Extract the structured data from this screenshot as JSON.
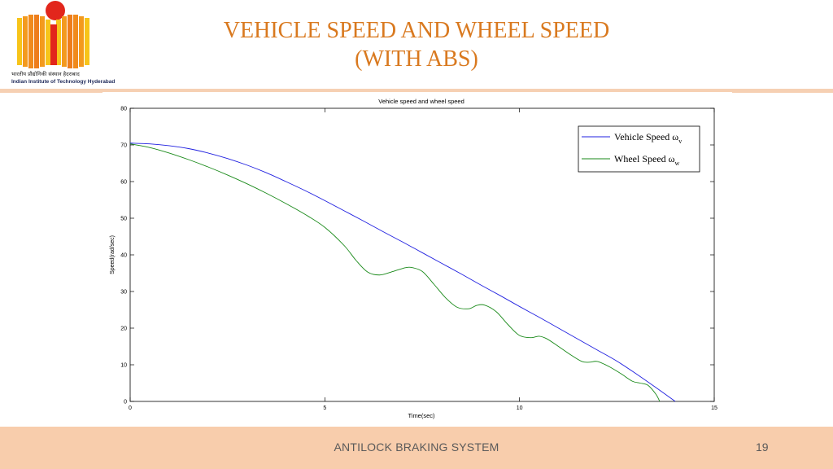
{
  "slide": {
    "title_line1": "VEHICLE SPEED AND WHEEL SPEED",
    "title_line2": "(WITH ABS)",
    "footer_text": "ANTILOCK BRAKING SYSTEM",
    "page_number": "19",
    "logo_hindi": "भारतीय प्रौद्योगिकी संस्थान हैदराबाद",
    "logo_english": "Indian Institute of Technology Hyderabad"
  },
  "colors": {
    "title": "#d9791f",
    "footer_band": "#f8cdac",
    "vehicle_series": "#2020e0",
    "wheel_series": "#1a8a1a",
    "logo_orange": "#f08a1c",
    "logo_red": "#e2261c",
    "logo_yellow": "#f7c41a"
  },
  "chart_data": {
    "type": "line",
    "title": "Vehicle speed and wheel speed",
    "xlabel": "Time(sec)",
    "ylabel": "Speed(rad/sec)",
    "xlim": [
      0,
      15
    ],
    "ylim": [
      0,
      80
    ],
    "xticks": [
      0,
      5,
      10,
      15
    ],
    "yticks": [
      0,
      10,
      20,
      30,
      40,
      50,
      60,
      70,
      80
    ],
    "grid": false,
    "legend_position": "top-right",
    "series": [
      {
        "name": "Vehicle Speed ω",
        "subscript": "v",
        "color": "#2020e0",
        "x": [
          0,
          0.5,
          1,
          1.5,
          2,
          2.5,
          3,
          3.5,
          4,
          4.5,
          5,
          5.5,
          6,
          6.5,
          7,
          7.5,
          8,
          8.5,
          9,
          9.5,
          10,
          10.5,
          11,
          11.5,
          12,
          12.5,
          13,
          13.5,
          14
        ],
        "y": [
          70.5,
          70.3,
          69.8,
          69.0,
          67.8,
          66.3,
          64.5,
          62.4,
          60.0,
          57.5,
          54.8,
          52.0,
          49.2,
          46.3,
          43.5,
          40.6,
          37.7,
          34.8,
          31.8,
          28.9,
          25.9,
          23.0,
          20.0,
          17.0,
          14.0,
          11.0,
          7.5,
          3.8,
          0
        ]
      },
      {
        "name": "Wheel Speed ω",
        "subscript": "w",
        "color": "#1a8a1a",
        "x": [
          0,
          0.5,
          1,
          1.5,
          2,
          2.5,
          3,
          3.5,
          4,
          4.5,
          5,
          5.5,
          5.8,
          6.1,
          6.4,
          6.7,
          7.0,
          7.2,
          7.5,
          7.8,
          8.1,
          8.4,
          8.7,
          8.9,
          9.1,
          9.4,
          9.7,
          10.0,
          10.3,
          10.5,
          10.7,
          11.0,
          11.3,
          11.6,
          11.8,
          12.0,
          12.3,
          12.6,
          12.9,
          13.1,
          13.3,
          13.5,
          13.6
        ],
        "y": [
          70.3,
          69.3,
          67.8,
          66.0,
          64.0,
          61.8,
          59.4,
          56.8,
          54.0,
          51.0,
          47.5,
          42.5,
          38.5,
          35.3,
          34.5,
          35.3,
          36.3,
          36.6,
          35.5,
          32.0,
          28.3,
          25.7,
          25.3,
          26.2,
          26.3,
          24.5,
          21.0,
          18.0,
          17.4,
          17.8,
          17.1,
          15.0,
          12.8,
          10.9,
          10.7,
          10.9,
          9.5,
          7.6,
          5.5,
          5.0,
          4.4,
          2.0,
          0
        ]
      }
    ]
  }
}
